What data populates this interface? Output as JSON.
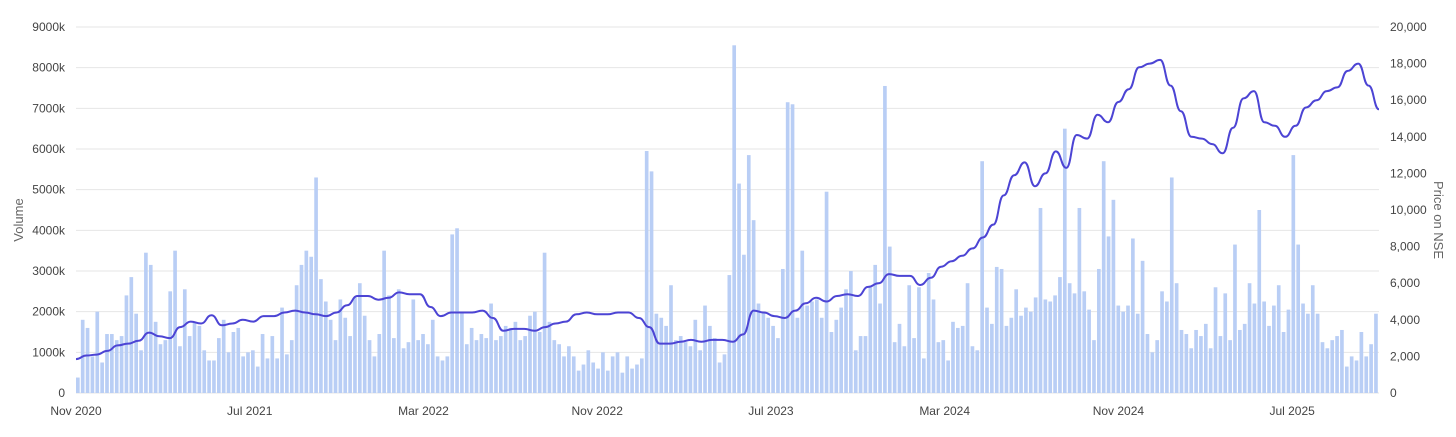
{
  "chart_data": {
    "type": "bar",
    "title": "",
    "xlabel": "",
    "ylabel": "Volume",
    "y2label": "Price on NSE",
    "x_tick_labels": [
      "Nov 2020",
      "Jul 2021",
      "Mar 2022",
      "Nov 2022",
      "Jul 2023",
      "Mar 2024",
      "Nov 2024",
      "Jul 2025"
    ],
    "y_tick_labels": [
      "0",
      "1000k",
      "2000k",
      "3000k",
      "4000k",
      "5000k",
      "6000k",
      "7000k",
      "8000k",
      "9000k"
    ],
    "y2_tick_labels": [
      "0",
      "2,000",
      "4,000",
      "6,000",
      "8,000",
      "10,000",
      "12,000",
      "14,000",
      "16,000",
      "18,000",
      "20,000"
    ],
    "ylim": [
      0,
      9000
    ],
    "y2lim": [
      0,
      20000
    ],
    "x_range": [
      "2020-11",
      "2025-11"
    ],
    "grid": true,
    "colors": {
      "bars": "#b9cef5",
      "line": "#4c44d4",
      "grid": "#e6e6e6"
    },
    "series": [
      {
        "type": "bar",
        "axis": "left",
        "unit": "k",
        "x_start": "2020-11",
        "x_step_months": 0.25,
        "values": [
          380,
          1800,
          1600,
          900,
          2000,
          750,
          1450,
          1450,
          1300,
          1400,
          2400,
          2850,
          1950,
          1050,
          3450,
          3150,
          1750,
          1200,
          1300,
          2500,
          3500,
          1150,
          2550,
          1400,
          1750,
          1650,
          1050,
          800,
          800,
          1350,
          1800,
          1000,
          1500,
          1600,
          900,
          1000,
          1050,
          650,
          1450,
          850,
          1400,
          850,
          2100,
          950,
          1300,
          2650,
          3150,
          3500,
          3350,
          5300,
          2800,
          2250,
          1800,
          1300,
          2300,
          1850,
          1400,
          2350,
          2700,
          1900,
          1300,
          900,
          1450,
          3500,
          2400,
          1350,
          2550,
          1100,
          1250,
          2300,
          1300,
          1450,
          1200,
          1800,
          900,
          800,
          900,
          3900,
          4050,
          2000,
          1200,
          1600,
          1300,
          1450,
          1350,
          2200,
          1300,
          1400,
          1650,
          1600,
          1750,
          1300,
          1400,
          1900,
          2000,
          1500,
          3450,
          1750,
          1300,
          1200,
          900,
          1150,
          900,
          550,
          700,
          1050,
          750,
          600,
          1000,
          550,
          900,
          1000,
          500,
          900,
          600,
          700,
          850,
          5950,
          5450,
          1950,
          1850,
          1650,
          2650,
          1300,
          1400,
          1250,
          1150,
          1800,
          1050,
          2150,
          1650,
          1350,
          750,
          950,
          2900,
          8550,
          5150,
          3400,
          5850,
          4250,
          2200,
          2000,
          1850,
          1650,
          1350,
          3050,
          7150,
          7100,
          1850,
          3500,
          2150,
          2250,
          2300,
          1850,
          4950,
          1500,
          1800,
          2100,
          2550,
          3000,
          1050,
          1400,
          1400,
          2600,
          3150,
          2200,
          7550,
          3600,
          1250,
          1700,
          1150,
          2650,
          1350,
          2600,
          850,
          2950,
          2300,
          1250,
          1300,
          800,
          1750,
          1600,
          1650,
          2700,
          1150,
          1050,
          5700,
          2100,
          1700,
          3100,
          3050,
          1650,
          1850,
          2550,
          1900,
          2100,
          2000,
          2350,
          4550,
          2300,
          2250,
          2400,
          2850,
          6500,
          2700,
          2450,
          4550,
          2500,
          2050,
          1300,
          3050,
          5700,
          3850,
          4750,
          2150,
          2000,
          2150,
          3800,
          1950,
          3250,
          1450,
          1000,
          1300,
          2500,
          2250,
          5300,
          2700,
          1550,
          1450,
          1100,
          1550,
          1400,
          1700,
          1100,
          2600,
          1400,
          2450,
          1300,
          3650,
          1550,
          1700,
          2700,
          2200,
          4500,
          2250,
          1650,
          2150,
          2650,
          1500,
          2050,
          5850,
          3650,
          2200,
          1950,
          2650,
          1950,
          1250,
          1100,
          1300,
          1400,
          1550,
          650,
          900,
          800,
          1500,
          900,
          1200,
          1950
        ]
      },
      {
        "type": "line",
        "axis": "right",
        "x_start": "2020-11",
        "x_step_months": 0.5,
        "values": [
          1850,
          2050,
          2100,
          2300,
          2600,
          2700,
          2850,
          3300,
          3100,
          3000,
          3600,
          3900,
          3800,
          4250,
          3700,
          3800,
          4000,
          3900,
          4200,
          4200,
          4400,
          4500,
          4400,
          4300,
          4200,
          4400,
          4800,
          5300,
          5300,
          5100,
          5200,
          5500,
          5400,
          5400,
          4700,
          4200,
          4400,
          4400,
          4400,
          4500,
          4100,
          3400,
          3500,
          3500,
          3400,
          3600,
          3800,
          3900,
          4300,
          4400,
          4300,
          4300,
          4400,
          4400,
          4100,
          3600,
          2700,
          2700,
          2800,
          2900,
          2800,
          2900,
          2900,
          2800,
          3200,
          4500,
          4400,
          4200,
          4100,
          4500,
          4900,
          5200,
          5000,
          5300,
          5400,
          5300,
          5800,
          6000,
          6500,
          6400,
          6400,
          5900,
          6300,
          6900,
          7200,
          7500,
          7900,
          8500,
          9200,
          10800,
          11900,
          12600,
          11300,
          12000,
          13200,
          12300,
          14100,
          13900,
          15200,
          14800,
          15900,
          16600,
          17800,
          18000,
          18200,
          16800,
          15400,
          14000,
          13900,
          13600,
          13100,
          14500,
          16100,
          16500,
          14800,
          14600,
          14000,
          14600,
          15600,
          16000,
          16500,
          16700,
          17600,
          18000,
          16800,
          15500
        ]
      }
    ]
  }
}
